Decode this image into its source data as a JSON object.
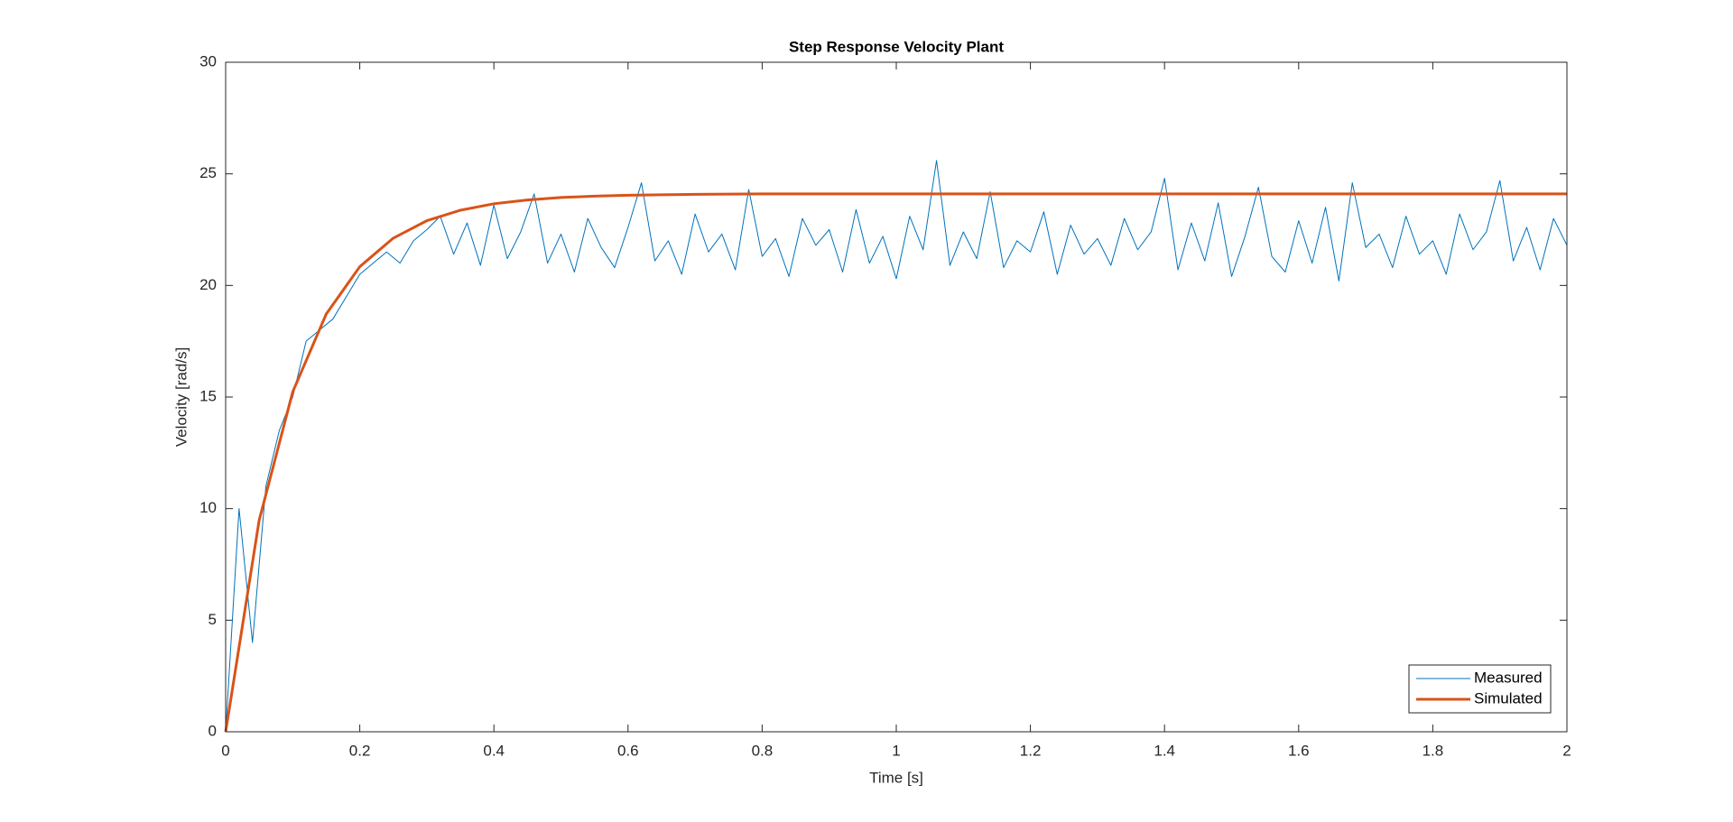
{
  "chart_data": {
    "type": "line",
    "title": "Step Response Velocity Plant",
    "xlabel": "Time [s]",
    "ylabel": "Velocity [rad/s]",
    "xlim": [
      0,
      2
    ],
    "ylim": [
      0,
      30
    ],
    "xticks": [
      0,
      0.2,
      0.4,
      0.6,
      0.8,
      1,
      1.2,
      1.4,
      1.6,
      1.8,
      2
    ],
    "yticks": [
      0,
      5,
      10,
      15,
      20,
      25,
      30
    ],
    "grid": false,
    "legend": "lower right",
    "series": [
      {
        "name": "Measured",
        "color": "#0072bd",
        "x": [
          0,
          0.02,
          0.04,
          0.06,
          0.08,
          0.1,
          0.12,
          0.14,
          0.16,
          0.18,
          0.2,
          0.22,
          0.24,
          0.26,
          0.28,
          0.3,
          0.32,
          0.34,
          0.36,
          0.38,
          0.4,
          0.42,
          0.44,
          0.46,
          0.48,
          0.5,
          0.52,
          0.54,
          0.56,
          0.58,
          0.6,
          0.62,
          0.64,
          0.66,
          0.68,
          0.7,
          0.72,
          0.74,
          0.76,
          0.78,
          0.8,
          0.82,
          0.84,
          0.86,
          0.88,
          0.9,
          0.92,
          0.94,
          0.96,
          0.98,
          1,
          1.02,
          1.04,
          1.06,
          1.08,
          1.1,
          1.12,
          1.14,
          1.16,
          1.18,
          1.2,
          1.22,
          1.24,
          1.26,
          1.28,
          1.3,
          1.32,
          1.34,
          1.36,
          1.38,
          1.4,
          1.42,
          1.44,
          1.46,
          1.48,
          1.5,
          1.52,
          1.54,
          1.56,
          1.58,
          1.6,
          1.62,
          1.64,
          1.66,
          1.68,
          1.7,
          1.72,
          1.74,
          1.76,
          1.78,
          1.8,
          1.82,
          1.84,
          1.86,
          1.88,
          1.9,
          1.92,
          1.94,
          1.96,
          1.98,
          2
        ],
        "values": [
          0,
          10,
          4,
          11,
          13.5,
          15,
          17.5,
          18,
          18.5,
          19.5,
          20.5,
          21,
          21.5,
          21,
          22,
          22.5,
          23.1,
          21.4,
          22.8,
          20.9,
          23.6,
          21.2,
          22.4,
          24.1,
          21.0,
          22.3,
          20.6,
          23.0,
          21.7,
          20.8,
          22.6,
          24.6,
          21.1,
          22.0,
          20.5,
          23.2,
          21.5,
          22.3,
          20.7,
          24.3,
          21.3,
          22.1,
          20.4,
          23.0,
          21.8,
          22.5,
          20.6,
          23.4,
          21.0,
          22.2,
          20.3,
          23.1,
          21.6,
          25.6,
          20.9,
          22.4,
          21.2,
          24.2,
          20.8,
          22.0,
          21.5,
          23.3,
          20.5,
          22.7,
          21.4,
          22.1,
          20.9,
          23.0,
          21.6,
          22.4,
          24.8,
          20.7,
          22.8,
          21.1,
          23.7,
          20.4,
          22.2,
          24.4,
          21.3,
          20.6,
          22.9,
          21.0,
          23.5,
          20.2,
          24.6,
          21.7,
          22.3,
          20.8,
          23.1,
          21.4,
          22.0,
          20.5,
          23.2,
          21.6,
          22.4,
          24.7,
          21.1,
          22.6,
          20.7,
          23.0,
          21.8
        ]
      },
      {
        "name": "Simulated",
        "color": "#d95319",
        "x": [
          0,
          0.05,
          0.1,
          0.15,
          0.2,
          0.25,
          0.3,
          0.35,
          0.4,
          0.45,
          0.5,
          0.55,
          0.6,
          0.65,
          0.7,
          0.75,
          0.8,
          0.85,
          0.9,
          0.95,
          1,
          1.05,
          1.1,
          1.15,
          1.2,
          1.25,
          1.3,
          1.35,
          1.4,
          1.45,
          1.5,
          1.55,
          1.6,
          1.65,
          1.7,
          1.75,
          1.8,
          1.85,
          1.9,
          1.95,
          2
        ],
        "values": [
          0,
          9.48,
          15.23,
          18.72,
          20.84,
          22.12,
          22.9,
          23.37,
          23.66,
          23.83,
          23.94,
          24.0,
          24.04,
          24.06,
          24.08,
          24.09,
          24.1,
          24.1,
          24.1,
          24.1,
          24.1,
          24.1,
          24.1,
          24.1,
          24.1,
          24.1,
          24.1,
          24.1,
          24.1,
          24.1,
          24.1,
          24.1,
          24.1,
          24.1,
          24.1,
          24.1,
          24.1,
          24.1,
          24.1,
          24.1,
          24.1
        ]
      }
    ]
  }
}
